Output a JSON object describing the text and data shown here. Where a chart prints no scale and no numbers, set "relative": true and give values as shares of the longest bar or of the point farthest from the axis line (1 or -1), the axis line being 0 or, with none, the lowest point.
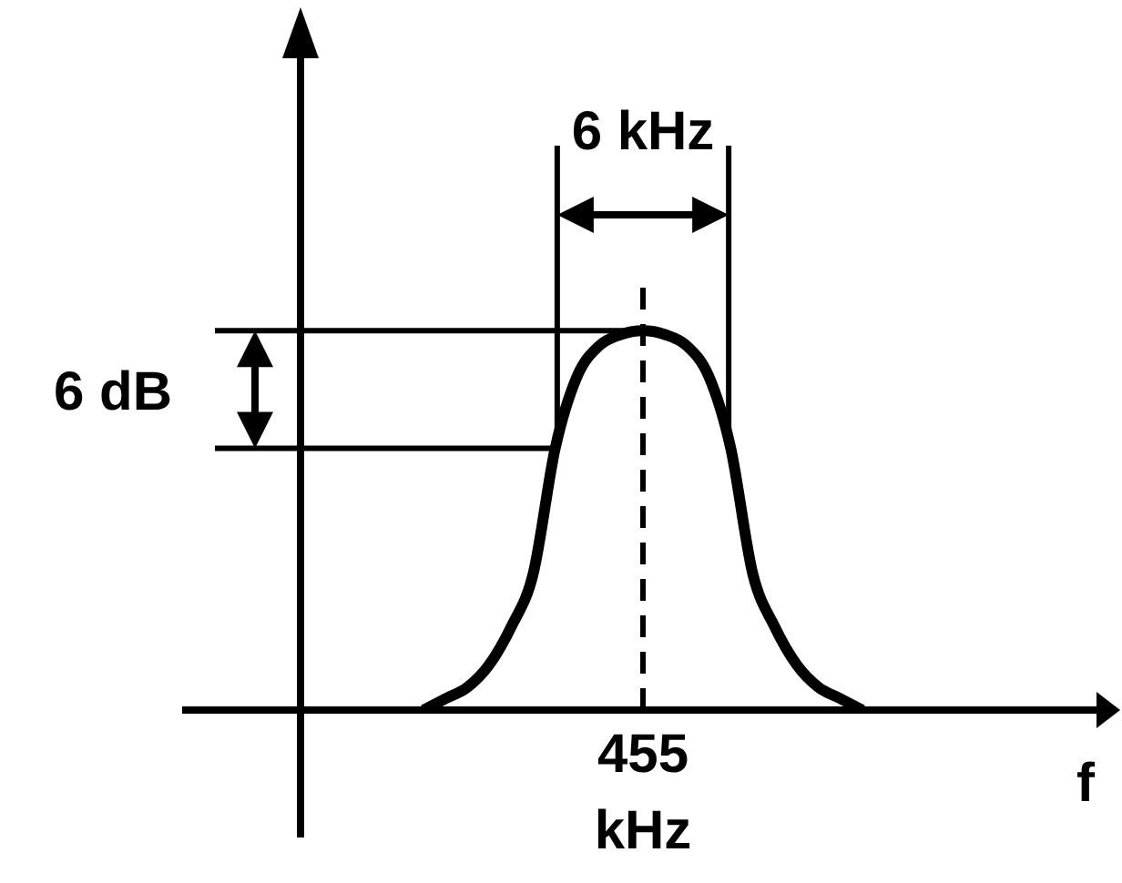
{
  "chart_data": {
    "type": "line",
    "relative": true,
    "xlabel": "f",
    "categories": [
      null,
      null,
      null,
      null,
      null,
      null,
      null,
      null,
      null,
      null,
      null,
      null,
      null,
      null,
      null,
      null,
      null,
      null,
      null,
      null,
      null,
      null,
      null,
      null,
      null,
      null,
      null,
      null,
      null,
      null,
      null,
      null,
      null,
      null,
      null,
      null,
      null,
      null,
      null,
      null,
      null,
      null,
      null
    ],
    "series": [
      {
        "color": "#000000",
        "values": [
          null,
          null,
          null,
          null,
          null,
          null,
          null,
          null,
          null,
          null,
          null,
          0,
          0.03,
          0.06,
          0.12,
          0.22,
          0.36,
          0.69,
          0.88,
          0.96,
          0.99,
          1,
          0.99,
          0.96,
          0.88,
          0.69,
          0.36,
          0.22,
          0.12,
          0.06,
          0.03,
          0,
          null,
          null,
          null,
          null,
          null,
          null,
          null,
          null,
          null,
          null,
          null
        ]
      }
    ],
    "annotations": [
      "6 kHz",
      "6 dB",
      "455 kHz"
    ],
    "grid": false,
    "legend": false,
    "marker": "none",
    "line_style": "solid"
  }
}
